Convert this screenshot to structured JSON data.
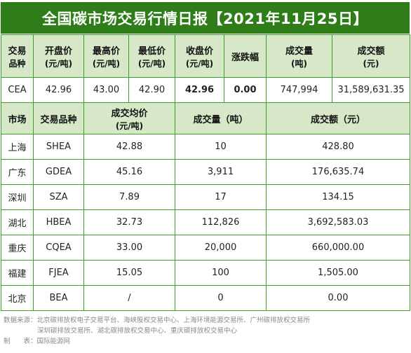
{
  "title": "全国碳市场交易行情日报【2021年11月25日】",
  "national": {
    "headers": [
      {
        "l1": "交易",
        "l2": "品种"
      },
      {
        "l1": "开盘价",
        "l2": "(元/吨)"
      },
      {
        "l1": "最高价",
        "l2": "(元/吨)"
      },
      {
        "l1": "最低价",
        "l2": "(元/吨)"
      },
      {
        "l1": "收盘价",
        "l2": "(元/吨)"
      },
      {
        "l1": "涨跌幅",
        "l2": ""
      },
      {
        "l1": "成交量",
        "l2": "(吨)"
      },
      {
        "l1": "成交额",
        "l2": "(元)"
      }
    ],
    "row": {
      "product": "CEA",
      "open": "42.96",
      "high": "43.00",
      "low": "42.90",
      "close": "42.96",
      "change": "0.00",
      "volume": "747,994",
      "amount": "31,589,631.35"
    }
  },
  "regional": {
    "headers": {
      "market": "市场",
      "product": "交易品种",
      "avg_l1": "成交均价",
      "avg_l2": "(元/吨)",
      "volume": "成交量（吨）",
      "amount": "成交额（元）"
    },
    "rows": [
      {
        "market": "上海",
        "product": "SHEA",
        "avg": "42.88",
        "volume": "10",
        "amount": "428.80"
      },
      {
        "market": "广东",
        "product": "GDEA",
        "avg": "45.16",
        "volume": "3,911",
        "amount": "176,635.74"
      },
      {
        "market": "深圳",
        "product": "SZA",
        "avg": "7.89",
        "volume": "17",
        "amount": "134.15"
      },
      {
        "market": "湖北",
        "product": "HBEA",
        "avg": "32.73",
        "volume": "112,826",
        "amount": "3,692,583.03"
      },
      {
        "market": "重庆",
        "product": "CQEA",
        "avg": "33.00",
        "volume": "20,000",
        "amount": "660,000.00"
      },
      {
        "market": "福建",
        "product": "FJEA",
        "avg": "15.05",
        "volume": "100",
        "amount": "1,505.00"
      },
      {
        "market": "北京",
        "product": "BEA",
        "avg": "/",
        "volume": "0",
        "amount": "0.00"
      }
    ]
  },
  "footer": {
    "source_line1": "数据来源：北京碳排放权电子交易平台、海峡股权交易中心、上海环境能源交易所、广州碳排放权交易所",
    "source_line2": "深圳碳排放交易所、湖北碳排放权交易中心、重庆碳排放权交易中心",
    "maker": "制　　表：国际能源网"
  },
  "colors": {
    "header_bg": "#2e7d18",
    "subheader_bg": "#d7e8c8",
    "border": "#3f9e2a",
    "highlight": "#e0201c"
  }
}
